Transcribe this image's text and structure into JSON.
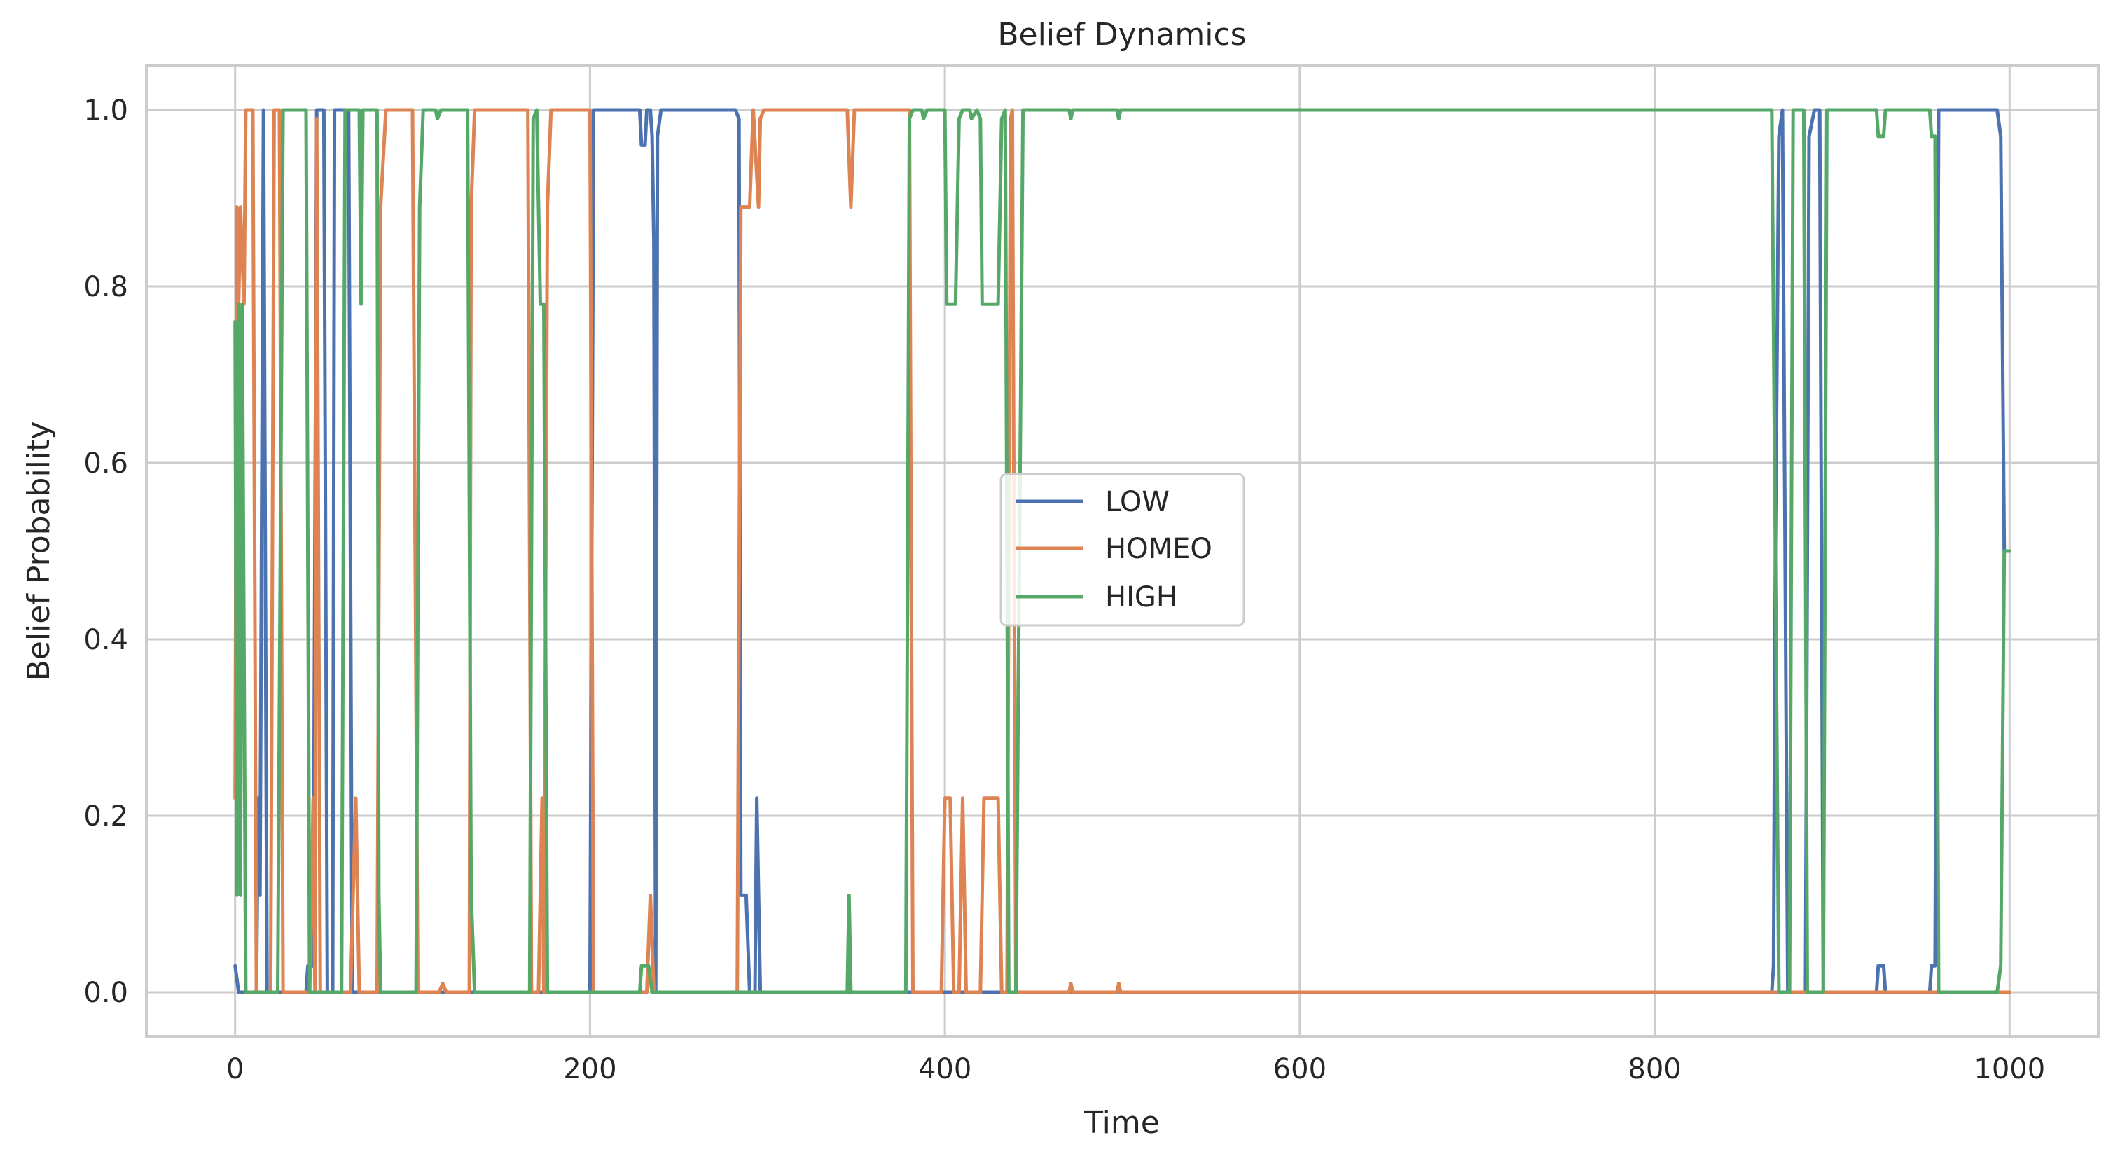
{
  "chart_data": {
    "type": "line",
    "title": "Belief Dynamics",
    "xlabel": "Time",
    "ylabel": "Belief Probability",
    "xlim": [
      -50,
      1050
    ],
    "ylim": [
      -0.05,
      1.05
    ],
    "xticks": [
      0,
      200,
      400,
      600,
      800,
      1000
    ],
    "xtick_labels": [
      "0",
      "200",
      "400",
      "600",
      "800",
      "1000"
    ],
    "yticks": [
      0.0,
      0.2,
      0.4,
      0.6,
      0.8,
      1.0
    ],
    "ytick_labels": [
      "0.0",
      "0.2",
      "0.4",
      "0.6",
      "0.8",
      "1.0"
    ],
    "grid": true,
    "legend_position": "center",
    "series": [
      {
        "name": "LOW",
        "color": "#4c72b0",
        "points": [
          [
            0,
            0.03
          ],
          [
            2,
            0.0
          ],
          [
            12,
            0.0
          ],
          [
            13,
            0.22
          ],
          [
            14,
            0.11
          ],
          [
            16,
            1.0
          ],
          [
            18,
            0.0
          ],
          [
            40,
            0.0
          ],
          [
            41,
            0.03
          ],
          [
            44,
            0.03
          ],
          [
            46,
            1.0
          ],
          [
            48,
            1.0
          ],
          [
            50,
            1.0
          ],
          [
            52,
            0.0
          ],
          [
            55,
            0.0
          ],
          [
            56,
            1.0
          ],
          [
            64,
            1.0
          ],
          [
            66,
            0.0
          ],
          [
            200,
            0.0
          ],
          [
            202,
            1.0
          ],
          [
            228,
            1.0
          ],
          [
            229,
            0.96
          ],
          [
            231,
            0.96
          ],
          [
            232,
            1.0
          ],
          [
            234,
            1.0
          ],
          [
            235,
            0.97
          ],
          [
            236,
            0.85
          ],
          [
            237,
            0.0
          ],
          [
            238,
            0.97
          ],
          [
            240,
            1.0
          ],
          [
            282,
            1.0
          ],
          [
            284,
            0.99
          ],
          [
            285,
            0.11
          ],
          [
            288,
            0.11
          ],
          [
            290,
            0.0
          ],
          [
            293,
            0.0
          ],
          [
            294,
            0.22
          ],
          [
            296,
            0.0
          ],
          [
            866,
            0.0
          ],
          [
            867,
            0.03
          ],
          [
            868,
            0.5
          ],
          [
            870,
            0.97
          ],
          [
            872,
            1.0
          ],
          [
            875,
            0.0
          ],
          [
            885,
            0.0
          ],
          [
            887,
            0.97
          ],
          [
            890,
            1.0
          ],
          [
            893,
            1.0
          ],
          [
            895,
            0.0
          ],
          [
            925,
            0.0
          ],
          [
            926,
            0.03
          ],
          [
            929,
            0.03
          ],
          [
            930,
            0.0
          ],
          [
            955,
            0.0
          ],
          [
            956,
            0.03
          ],
          [
            958,
            0.03
          ],
          [
            960,
            1.0
          ],
          [
            993,
            1.0
          ],
          [
            995,
            0.97
          ],
          [
            997,
            0.5
          ],
          [
            1000,
            0.5
          ]
        ]
      },
      {
        "name": "HOMEO",
        "color": "#dd8452",
        "points": [
          [
            0,
            0.22
          ],
          [
            1,
            0.89
          ],
          [
            2,
            0.78
          ],
          [
            3,
            0.89
          ],
          [
            5,
            0.78
          ],
          [
            6,
            1.0
          ],
          [
            10,
            1.0
          ],
          [
            12,
            0.0
          ],
          [
            18,
            0.0
          ],
          [
            20,
            0.0
          ],
          [
            22,
            1.0
          ],
          [
            25,
            1.0
          ],
          [
            27,
            0.0
          ],
          [
            42,
            0.0
          ],
          [
            44,
            0.22
          ],
          [
            45,
            0.0
          ],
          [
            46,
            0.99
          ],
          [
            48,
            0.0
          ],
          [
            65,
            0.0
          ],
          [
            68,
            0.22
          ],
          [
            70,
            0.0
          ],
          [
            80,
            0.0
          ],
          [
            82,
            0.89
          ],
          [
            85,
            1.0
          ],
          [
            100,
            1.0
          ],
          [
            103,
            0.0
          ],
          [
            115,
            0.0
          ],
          [
            117,
            0.01
          ],
          [
            119,
            0.0
          ],
          [
            132,
            0.0
          ],
          [
            133,
            0.89
          ],
          [
            135,
            1.0
          ],
          [
            165,
            1.0
          ],
          [
            167,
            0.0
          ],
          [
            171,
            0.0
          ],
          [
            173,
            0.22
          ],
          [
            174,
            0.0
          ],
          [
            176,
            0.89
          ],
          [
            178,
            1.0
          ],
          [
            200,
            1.0
          ],
          [
            202,
            0.0
          ],
          [
            232,
            0.0
          ],
          [
            234,
            0.11
          ],
          [
            236,
            0.0
          ],
          [
            283,
            0.0
          ],
          [
            285,
            0.89
          ],
          [
            290,
            0.89
          ],
          [
            292,
            1.0
          ],
          [
            295,
            0.89
          ],
          [
            296,
            0.99
          ],
          [
            298,
            1.0
          ],
          [
            345,
            1.0
          ],
          [
            347,
            0.89
          ],
          [
            349,
            1.0
          ],
          [
            380,
            1.0
          ],
          [
            382,
            0.0
          ],
          [
            398,
            0.0
          ],
          [
            400,
            0.22
          ],
          [
            403,
            0.22
          ],
          [
            405,
            0.0
          ],
          [
            408,
            0.0
          ],
          [
            410,
            0.22
          ],
          [
            412,
            0.0
          ],
          [
            420,
            0.0
          ],
          [
            422,
            0.22
          ],
          [
            430,
            0.22
          ],
          [
            432,
            0.0
          ],
          [
            435,
            0.0
          ],
          [
            437,
            0.99
          ],
          [
            438,
            1.0
          ],
          [
            440,
            0.0
          ],
          [
            470,
            0.0
          ],
          [
            471,
            0.01
          ],
          [
            472,
            0.0
          ],
          [
            497,
            0.0
          ],
          [
            498,
            0.01
          ],
          [
            499,
            0.0
          ],
          [
            1000,
            0.0
          ]
        ]
      },
      {
        "name": "HIGH",
        "color": "#55a868",
        "points": [
          [
            0,
            0.76
          ],
          [
            1,
            0.11
          ],
          [
            2,
            0.78
          ],
          [
            3,
            0.11
          ],
          [
            4,
            0.78
          ],
          [
            6,
            0.0
          ],
          [
            15,
            0.0
          ],
          [
            17,
            0.0
          ],
          [
            24,
            0.0
          ],
          [
            27,
            1.0
          ],
          [
            40,
            1.0
          ],
          [
            42,
            0.0
          ],
          [
            60,
            0.0
          ],
          [
            62,
            1.0
          ],
          [
            70,
            1.0
          ],
          [
            71,
            0.78
          ],
          [
            72,
            1.0
          ],
          [
            80,
            1.0
          ],
          [
            81,
            0.11
          ],
          [
            82,
            0.0
          ],
          [
            102,
            0.0
          ],
          [
            104,
            0.89
          ],
          [
            106,
            1.0
          ],
          [
            113,
            1.0
          ],
          [
            114,
            0.99
          ],
          [
            116,
            1.0
          ],
          [
            131,
            1.0
          ],
          [
            133,
            0.11
          ],
          [
            135,
            0.0
          ],
          [
            166,
            0.0
          ],
          [
            168,
            0.99
          ],
          [
            170,
            1.0
          ],
          [
            172,
            0.78
          ],
          [
            174,
            0.78
          ],
          [
            176,
            0.0
          ],
          [
            228,
            0.0
          ],
          [
            229,
            0.03
          ],
          [
            233,
            0.03
          ],
          [
            235,
            0.0
          ],
          [
            345,
            0.0
          ],
          [
            346,
            0.11
          ],
          [
            347,
            0.0
          ],
          [
            378,
            0.0
          ],
          [
            380,
            0.99
          ],
          [
            382,
            1.0
          ],
          [
            387,
            1.0
          ],
          [
            388,
            0.99
          ],
          [
            390,
            1.0
          ],
          [
            400,
            1.0
          ],
          [
            401,
            0.78
          ],
          [
            406,
            0.78
          ],
          [
            408,
            0.99
          ],
          [
            410,
            1.0
          ],
          [
            414,
            1.0
          ],
          [
            415,
            0.99
          ],
          [
            418,
            1.0
          ],
          [
            420,
            0.99
          ],
          [
            421,
            0.78
          ],
          [
            430,
            0.78
          ],
          [
            432,
            0.99
          ],
          [
            434,
            1.0
          ],
          [
            436,
            0.0
          ],
          [
            440,
            0.0
          ],
          [
            444,
            1.0
          ],
          [
            470,
            1.0
          ],
          [
            471,
            0.99
          ],
          [
            472,
            1.0
          ],
          [
            497,
            1.0
          ],
          [
            498,
            0.99
          ],
          [
            499,
            1.0
          ],
          [
            866,
            1.0
          ],
          [
            868,
            0.5
          ],
          [
            870,
            0.0
          ],
          [
            876,
            0.0
          ],
          [
            878,
            1.0
          ],
          [
            884,
            1.0
          ],
          [
            886,
            0.0
          ],
          [
            895,
            0.0
          ],
          [
            897,
            1.0
          ],
          [
            925,
            1.0
          ],
          [
            926,
            0.97
          ],
          [
            929,
            0.97
          ],
          [
            930,
            1.0
          ],
          [
            955,
            1.0
          ],
          [
            956,
            0.97
          ],
          [
            958,
            0.97
          ],
          [
            960,
            0.0
          ],
          [
            993,
            0.0
          ],
          [
            995,
            0.03
          ],
          [
            997,
            0.5
          ],
          [
            1000,
            0.5
          ]
        ]
      }
    ]
  }
}
